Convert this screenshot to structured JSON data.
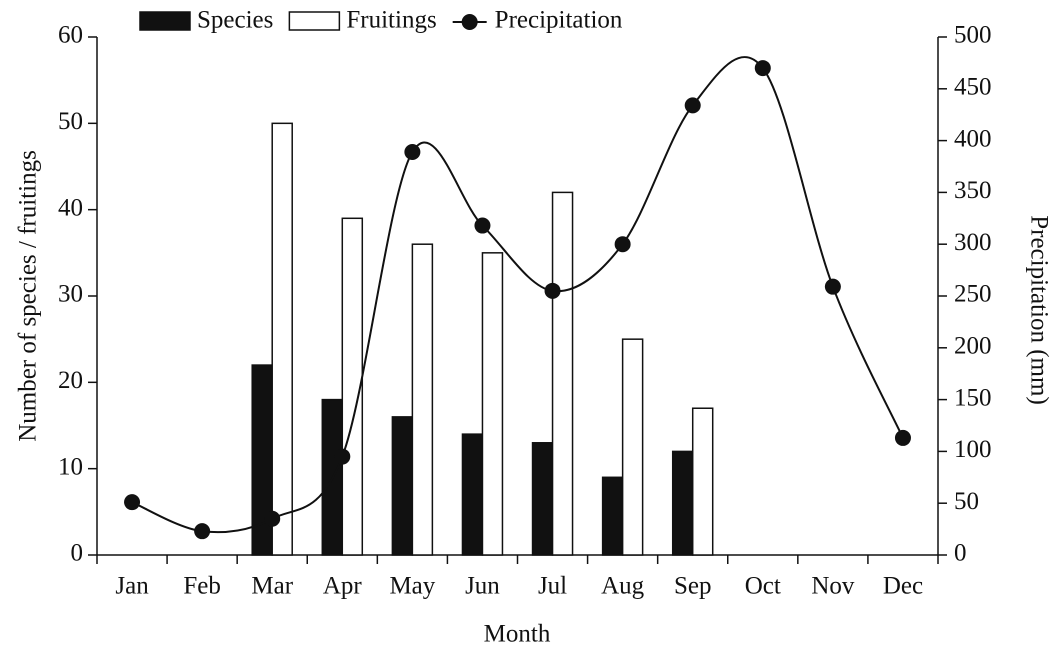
{
  "chart_data": {
    "type": "bar_line",
    "x_label": "Month",
    "y_label": "Number of species / fruitings",
    "y2_label": "Precipitation (mm)",
    "categories": [
      "Jan",
      "Feb",
      "Mar",
      "Apr",
      "May",
      "Jun",
      "Jul",
      "Aug",
      "Sep",
      "Oct",
      "Nov",
      "Dec"
    ],
    "series": [
      {
        "name": "Species",
        "type": "bar",
        "color": "#111111",
        "values": [
          null,
          null,
          22,
          18,
          16,
          14,
          13,
          9,
          12,
          null,
          null,
          null
        ]
      },
      {
        "name": "Fruitings",
        "type": "bar",
        "color": "#ffffff",
        "values": [
          null,
          null,
          50,
          39,
          36,
          35,
          42,
          25,
          17,
          null,
          null,
          null
        ]
      },
      {
        "name": "Precipitation",
        "type": "line",
        "axis": "y2",
        "color": "#111111",
        "values": [
          51,
          23,
          35,
          95,
          389,
          318,
          255,
          300,
          434,
          470,
          259,
          113
        ]
      }
    ],
    "ylim": [
      0,
      60
    ],
    "yticks": [
      0,
      10,
      20,
      30,
      40,
      50,
      60
    ],
    "y2lim": [
      0,
      500
    ],
    "y2ticks": [
      0,
      50,
      100,
      150,
      200,
      250,
      300,
      350,
      400,
      450,
      500
    ],
    "grid": false,
    "legend": "top"
  }
}
